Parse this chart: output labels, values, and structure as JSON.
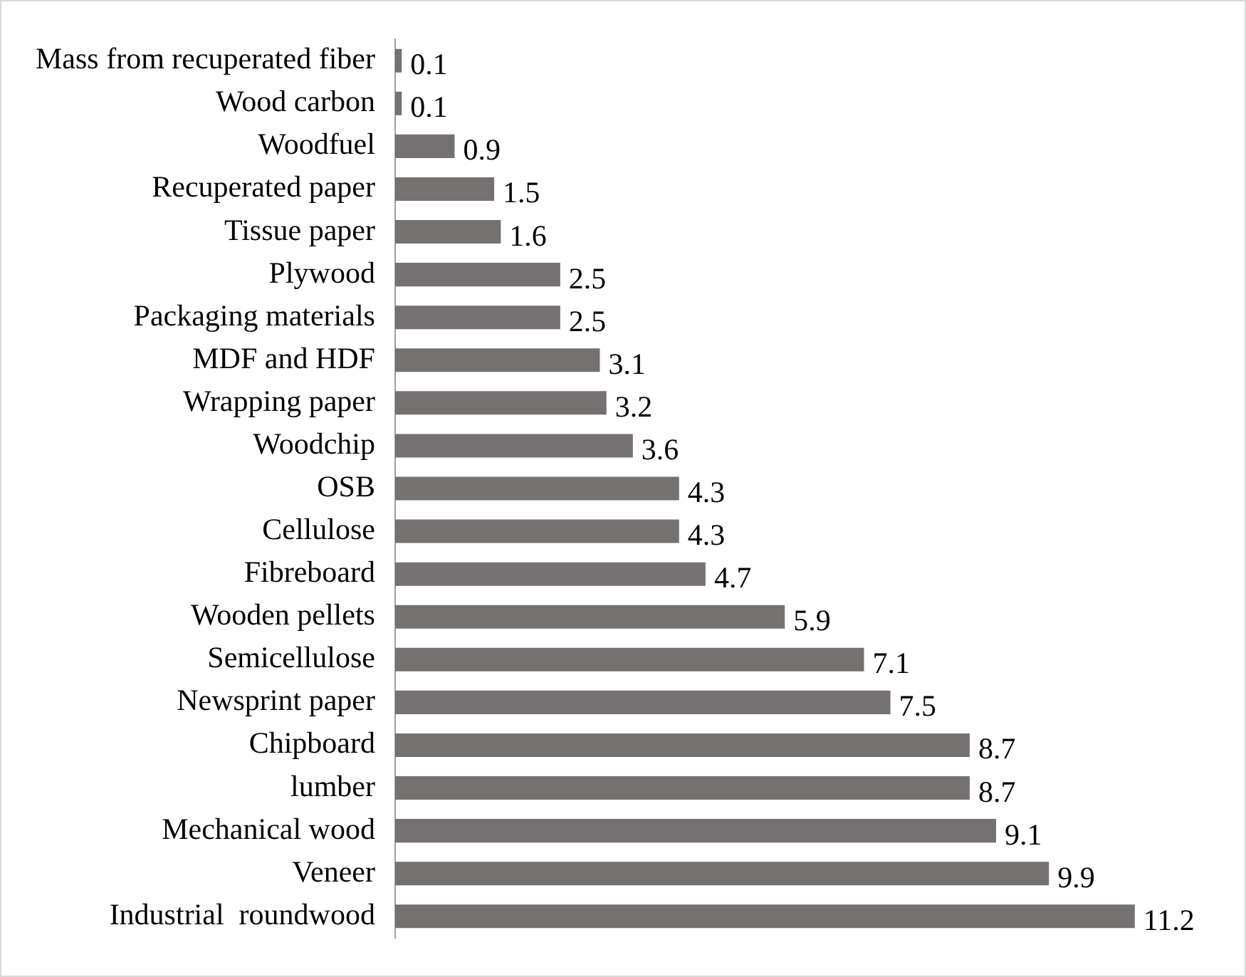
{
  "chart_data": {
    "type": "bar",
    "orientation": "horizontal",
    "data_labels": true,
    "color": "#767171",
    "categories": [
      "Mass from recuperated fiber",
      "Wood carbon",
      "Woodfuel",
      "Recuperated paper",
      "Tissue paper",
      "Plywood",
      "Packaging materials",
      "MDF and HDF",
      "Wrapping paper",
      "Woodchip",
      "OSB",
      "Cellulose",
      "Fibreboard",
      "Wooden pellets",
      "Semicellulose",
      "Newsprint paper",
      "Chipboard",
      "lumber",
      "Mechanical wood",
      "Veneer",
      "Industrial  roundwood"
    ],
    "values": [
      0.1,
      0.1,
      0.9,
      1.5,
      1.6,
      2.5,
      2.5,
      3.1,
      3.2,
      3.6,
      4.3,
      4.3,
      4.7,
      5.9,
      7.1,
      7.5,
      8.7,
      8.7,
      9.1,
      9.9,
      11.2
    ]
  }
}
